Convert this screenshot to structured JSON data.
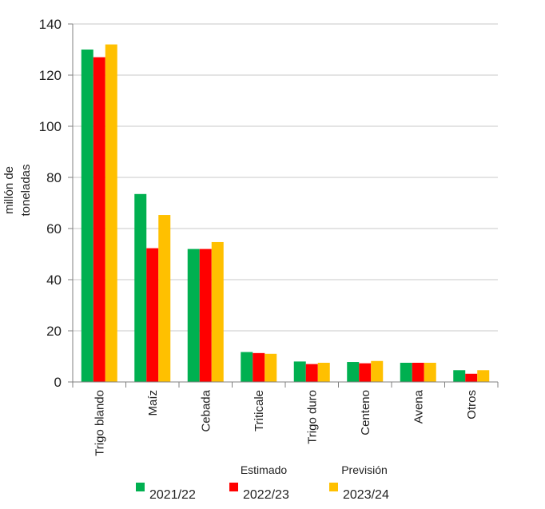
{
  "chart_data": {
    "type": "bar",
    "title": "",
    "xlabel": "",
    "ylabel": "millón de toneladas",
    "ylabel_lines": [
      "millón de",
      "toneladas"
    ],
    "ylim": [
      0,
      140
    ],
    "yticks": [
      0,
      20,
      40,
      60,
      80,
      100,
      120,
      140
    ],
    "grid": true,
    "legend_position": "bottom",
    "categories": [
      "Trigo blando",
      "Maíz",
      "Cebada",
      "Triticale",
      "Trigo duro",
      "Centeno",
      "Avena",
      "Otros"
    ],
    "series": [
      {
        "name": "2021/22",
        "color": "#00b050",
        "values": [
          130,
          73.5,
          52,
          11.7,
          8,
          7.8,
          7.5,
          4.6
        ]
      },
      {
        "name": "2022/23",
        "color": "#ff0000",
        "values": [
          127,
          52.3,
          52,
          11.3,
          7,
          7.3,
          7.5,
          3.2
        ]
      },
      {
        "name": "2023/24",
        "color": "#ffc000",
        "values": [
          132,
          65.3,
          54.7,
          11,
          7.5,
          8.2,
          7.5,
          4.6
        ]
      }
    ],
    "legend_annotations": {
      "estimado": "Estimado",
      "prevision": "Previsión"
    }
  }
}
